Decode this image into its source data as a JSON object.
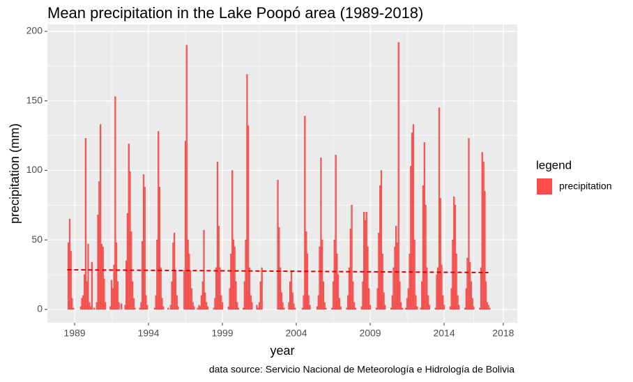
{
  "chart_data": {
    "type": "bar",
    "title": "Mean precipitation in the Lake Poopó area (1989-2018)",
    "x_label": "year",
    "y_label": "precipitation (mm)",
    "caption": "data source: Servicio Nacional de Meteorología e Hidrología de Bolivia",
    "legend_title": "legend",
    "legend_position": "right",
    "grid": true,
    "xlim": [
      1987.16,
      2018.95
    ],
    "ylim": [
      -9.6,
      205
    ],
    "xticks": [
      1989,
      1994,
      1999,
      2004,
      2009,
      2014,
      2018
    ],
    "yticks": [
      0,
      50,
      100,
      150,
      200
    ],
    "series": [
      {
        "name": "precipitation",
        "color": "#ff4d4d",
        "x": [
          1988.5,
          1988.58,
          1988.67,
          1988.75,
          1988.83,
          1988.92,
          1989,
          1989.08,
          1989.17,
          1989.25,
          1989.33,
          1989.42,
          1989.5,
          1989.58,
          1989.67,
          1989.75,
          1989.83,
          1989.92,
          1990,
          1990.08,
          1990.17,
          1990.25,
          1990.33,
          1990.42,
          1990.5,
          1990.58,
          1990.67,
          1990.75,
          1990.83,
          1990.92,
          1991,
          1991.08,
          1991.17,
          1991.25,
          1991.33,
          1991.42,
          1991.5,
          1991.58,
          1991.67,
          1991.75,
          1991.83,
          1991.92,
          1992,
          1992.08,
          1992.17,
          1992.25,
          1992.33,
          1992.42,
          1992.5,
          1992.58,
          1992.67,
          1992.75,
          1992.83,
          1992.92,
          1993,
          1993.08,
          1993.17,
          1993.25,
          1993.33,
          1993.42,
          1993.5,
          1993.58,
          1993.67,
          1993.75,
          1993.83,
          1993.92,
          1994,
          1994.08,
          1994.17,
          1994.25,
          1994.33,
          1994.42,
          1994.5,
          1994.58,
          1994.67,
          1994.75,
          1994.83,
          1994.92,
          1995,
          1995.08,
          1995.17,
          1995.25,
          1995.33,
          1995.42,
          1995.5,
          1995.58,
          1995.67,
          1995.75,
          1995.83,
          1995.92,
          1996,
          1996.08,
          1996.17,
          1996.25,
          1996.33,
          1996.42,
          1996.5,
          1996.58,
          1996.67,
          1996.75,
          1996.83,
          1996.92,
          1997,
          1997.08,
          1997.17,
          1997.25,
          1997.33,
          1997.42,
          1997.5,
          1997.58,
          1997.67,
          1997.75,
          1997.83,
          1997.92,
          1998,
          1998.08,
          1998.17,
          1998.25,
          1998.33,
          1998.42,
          1998.5,
          1998.58,
          1998.67,
          1998.75,
          1998.83,
          1998.92,
          1999,
          1999.08,
          1999.17,
          1999.25,
          1999.33,
          1999.42,
          1999.5,
          1999.58,
          1999.67,
          1999.75,
          1999.83,
          1999.92,
          2000,
          2000.08,
          2000.17,
          2000.25,
          2000.33,
          2000.42,
          2000.5,
          2000.58,
          2000.67,
          2000.75,
          2000.83,
          2000.92,
          2001,
          2001.08,
          2001.17,
          2001.25,
          2001.33,
          2001.42,
          2001.5,
          2001.58,
          2001.67,
          2002.75,
          2002.83,
          2002.92,
          2003,
          2003.08,
          2003.17,
          2003.25,
          2003.33,
          2003.42,
          2003.5,
          2003.58,
          2003.67,
          2003.75,
          2003.83,
          2003.92,
          2004,
          2004.08,
          2004.17,
          2004.25,
          2004.33,
          2004.42,
          2004.5,
          2004.58,
          2004.67,
          2004.75,
          2004.83,
          2004.92,
          2005,
          2005.08,
          2005.17,
          2005.25,
          2005.33,
          2005.42,
          2005.5,
          2005.58,
          2005.67,
          2005.75,
          2005.83,
          2005.92,
          2006,
          2006.08,
          2006.17,
          2006.25,
          2006.33,
          2006.42,
          2006.5,
          2006.58,
          2006.67,
          2006.75,
          2006.83,
          2006.92,
          2007,
          2007.08,
          2007.17,
          2007.25,
          2007.33,
          2007.42,
          2007.5,
          2007.58,
          2007.67,
          2007.75,
          2007.83,
          2007.92,
          2008,
          2008.08,
          2008.17,
          2008.25,
          2008.33,
          2008.42,
          2008.5,
          2008.58,
          2008.67,
          2008.75,
          2008.83,
          2008.92,
          2009,
          2009.08,
          2009.17,
          2009.25,
          2009.33,
          2009.42,
          2009.5,
          2009.58,
          2009.67,
          2009.75,
          2009.83,
          2009.92,
          2010,
          2010.08,
          2010.17,
          2010.25,
          2010.33,
          2010.42,
          2010.5,
          2010.58,
          2010.67,
          2010.75,
          2010.83,
          2010.92,
          2011,
          2011.08,
          2011.17,
          2011.25,
          2011.33,
          2011.42,
          2011.5,
          2011.58,
          2011.67,
          2011.75,
          2011.83,
          2011.92,
          2012,
          2012.08,
          2012.17,
          2012.25,
          2012.33,
          2012.42,
          2012.5,
          2012.58,
          2012.67,
          2012.75,
          2012.83,
          2012.92,
          2013,
          2013.08,
          2013.17,
          2013.25,
          2013.33,
          2013.42,
          2013.5,
          2013.58,
          2013.67,
          2013.75,
          2013.83,
          2013.92,
          2014,
          2014.08,
          2014.17,
          2014.25,
          2014.33,
          2014.42,
          2014.5,
          2014.58,
          2014.67,
          2014.75,
          2014.83,
          2014.92,
          2015,
          2015.08,
          2015.17,
          2015.25,
          2015.33,
          2015.42,
          2015.5,
          2015.58,
          2015.67,
          2015.75,
          2015.83,
          2015.92,
          2016,
          2016.08,
          2016.17,
          2016.25,
          2016.33,
          2016.42,
          2016.5,
          2016.58,
          2016.67,
          2016.75,
          2016.83,
          2016.92,
          2017,
          2017.08,
          2017.17,
          2017.25,
          2017.33,
          2017.42
        ],
        "values": [
          0,
          48,
          65,
          42,
          8,
          1,
          0,
          0,
          0,
          0,
          0,
          2,
          8,
          10,
          25,
          123,
          20,
          47,
          5,
          2,
          34,
          0,
          1,
          0,
          5,
          68,
          92,
          133,
          47,
          45,
          22,
          5,
          0,
          0,
          0,
          2,
          21,
          15,
          32,
          153,
          48,
          20,
          5,
          0,
          4,
          0,
          0,
          3,
          35,
          69,
          119,
          99,
          56,
          20,
          8,
          1,
          0,
          0,
          0,
          1,
          5,
          49,
          97,
          88,
          10,
          3,
          0,
          0,
          0,
          0,
          0,
          1,
          10,
          50,
          128,
          88,
          30,
          8,
          2,
          0,
          0,
          0,
          1,
          0,
          3,
          20,
          48,
          55,
          28,
          10,
          2,
          0,
          0,
          0,
          0,
          28,
          121,
          190,
          50,
          40,
          28,
          15,
          5,
          2,
          0,
          0,
          1,
          3,
          2,
          10,
          20,
          57,
          12,
          5,
          2,
          0,
          0,
          0,
          0,
          1,
          8,
          30,
          106,
          60,
          30,
          10,
          5,
          0,
          0,
          0,
          0,
          2,
          15,
          40,
          100,
          50,
          45,
          20,
          5,
          1,
          0,
          0,
          0,
          1,
          20,
          50,
          169,
          132,
          30,
          10,
          5,
          0,
          0,
          0,
          3,
          1,
          5,
          20,
          30,
          93,
          59,
          30,
          12,
          5,
          1,
          0,
          0,
          0,
          5,
          20,
          28,
          12,
          4,
          1,
          0,
          0,
          0,
          0,
          0,
          1,
          10,
          139,
          56,
          40,
          10,
          3,
          0,
          0,
          0,
          0,
          0,
          2,
          10,
          45,
          109,
          50,
          20,
          5,
          1,
          0,
          0,
          0,
          0,
          1,
          20,
          50,
          111,
          40,
          25,
          8,
          2,
          0,
          0,
          0,
          0,
          1,
          10,
          30,
          58,
          75,
          20,
          5,
          1,
          0,
          0,
          0,
          0,
          2,
          20,
          70,
          64,
          70,
          45,
          15,
          3,
          0,
          0,
          0,
          0,
          1,
          15,
          55,
          89,
          100,
          40,
          12,
          3,
          0,
          0,
          0,
          0,
          1,
          10,
          30,
          45,
          60,
          48,
          192,
          20,
          5,
          1,
          0,
          0,
          1,
          8,
          15,
          40,
          103,
          127,
          133,
          50,
          10,
          2,
          0,
          0,
          1,
          20,
          89,
          120,
          75,
          30,
          10,
          3,
          0,
          0,
          0,
          0,
          1,
          25,
          30,
          145,
          80,
          32,
          10,
          3,
          0,
          0,
          0,
          0,
          2,
          15,
          50,
          81,
          75,
          40,
          10,
          3,
          0,
          0,
          0,
          0,
          1,
          15,
          37,
          123,
          34,
          20,
          8,
          2,
          0,
          0,
          0,
          0,
          1,
          30,
          113,
          106,
          85,
          20,
          5,
          3,
          1,
          0,
          0,
          0,
          0
        ]
      },
      {
        "type": "line",
        "style": "dashed",
        "color": "#dd0000",
        "x": [
          1988.5,
          2017.0
        ],
        "values": [
          28.5,
          26.5
        ]
      }
    ]
  }
}
